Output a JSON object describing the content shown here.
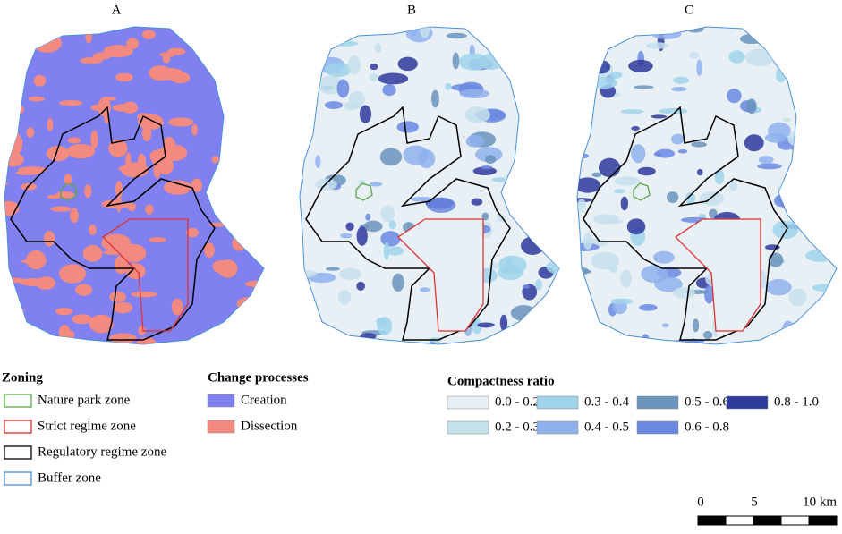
{
  "panels": [
    {
      "label": "A"
    },
    {
      "label": "B"
    },
    {
      "label": "C"
    }
  ],
  "legends": {
    "zoning": {
      "title": "Zoning",
      "items": [
        {
          "label": "Nature park zone",
          "color": "#5aa846"
        },
        {
          "label": "Strict regime zone",
          "color": "#e03030"
        },
        {
          "label": "Regulatory regime zone",
          "color": "#000000"
        },
        {
          "label": "Buffer zone",
          "color": "#4a8fd8"
        }
      ]
    },
    "change": {
      "title": "Change processes",
      "items": [
        {
          "label": "Creation",
          "color": "#8080f0"
        },
        {
          "label": "Dissection",
          "color": "#f28a80"
        }
      ]
    },
    "compactness": {
      "title": "Compactness ratio",
      "items": [
        {
          "label": "0.0 - 0.2",
          "color": "#e8f0f6"
        },
        {
          "label": "0.3 - 0.4",
          "color": "#9fd3ea"
        },
        {
          "label": "0.5 - 0.6",
          "color": "#6a94bc"
        },
        {
          "label": "0.8 - 1.0",
          "color": "#2e3a9c"
        },
        {
          "label": "0.2 - 0.3",
          "color": "#c4e1ec"
        },
        {
          "label": "0.4 - 0.5",
          "color": "#8fb2ec"
        },
        {
          "label": "0.6 - 0.8",
          "color": "#6a88e0"
        }
      ]
    }
  },
  "scale_bar": {
    "labels": [
      "0",
      "5",
      "10 km"
    ]
  }
}
